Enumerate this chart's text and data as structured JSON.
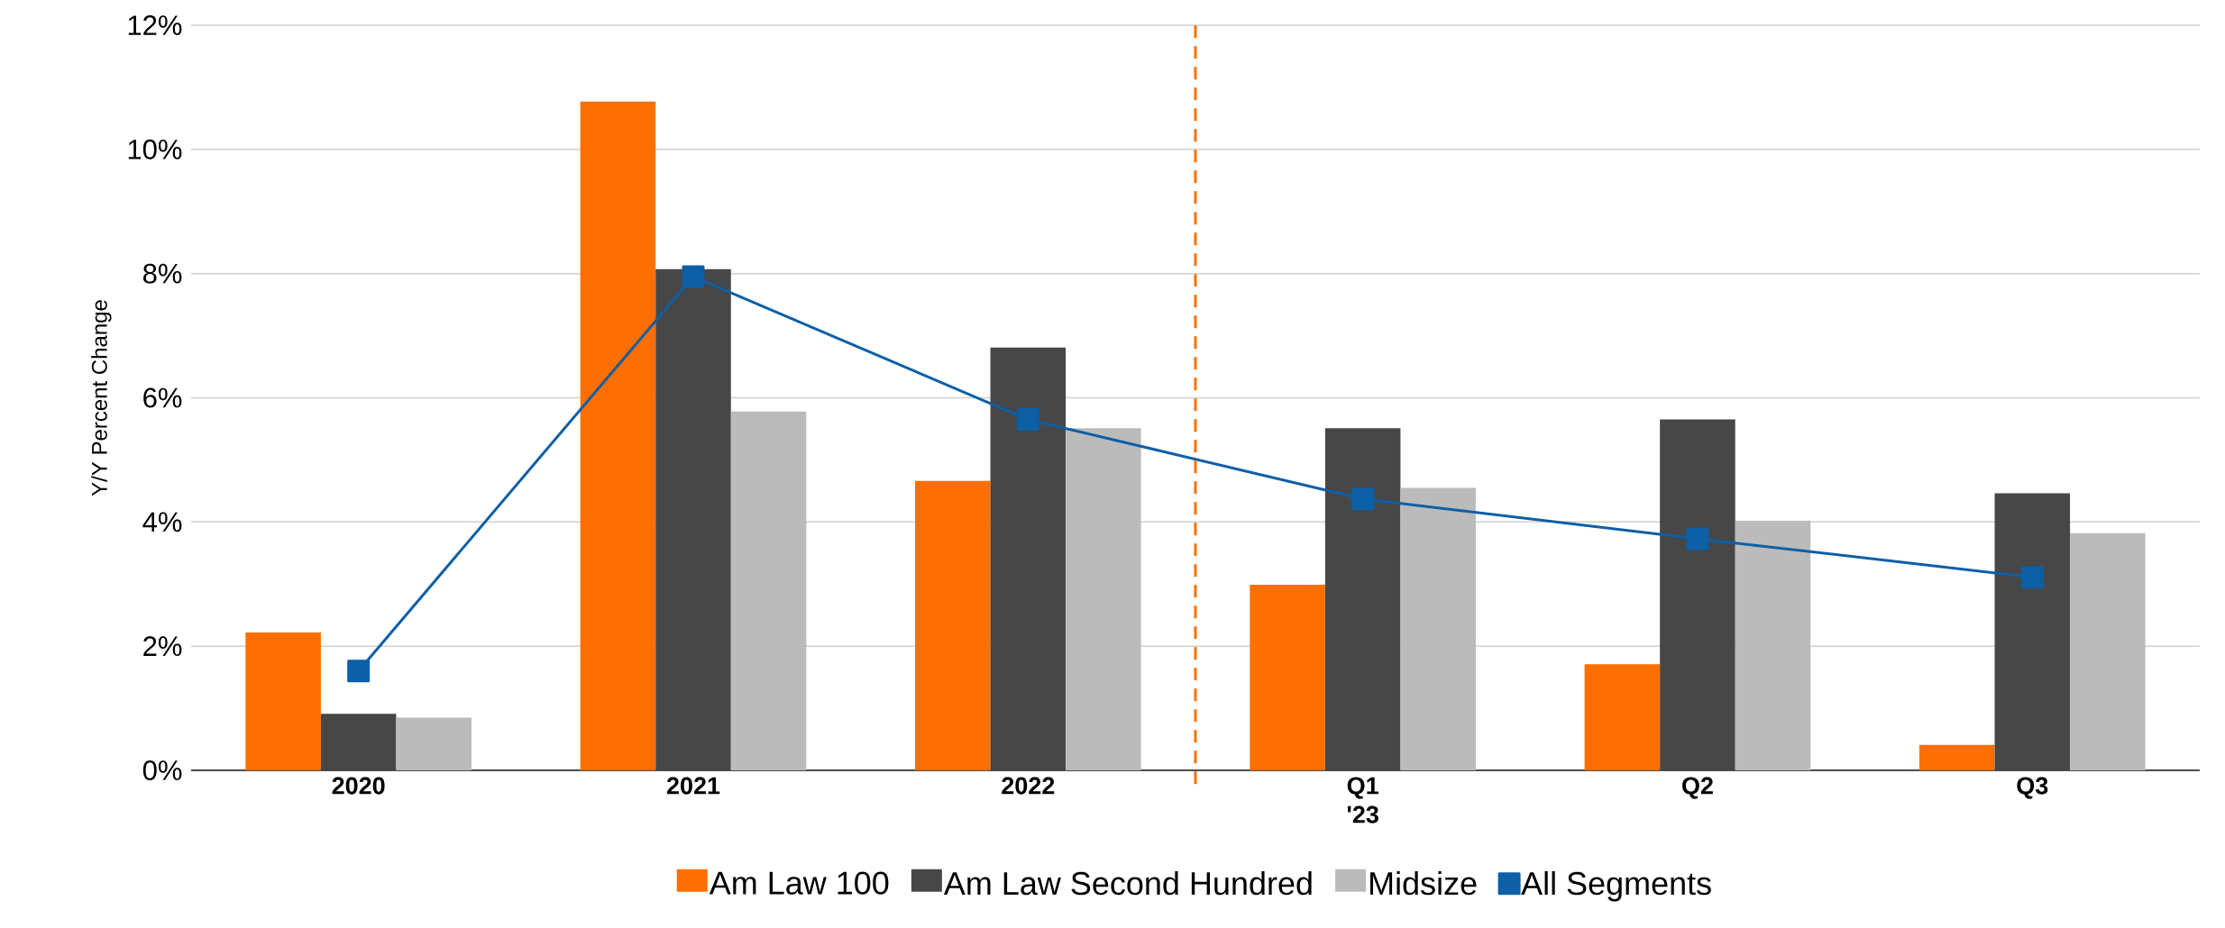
{
  "chart_data": {
    "type": "bar",
    "ylabel": "Y/Y Percent Change",
    "categories": [
      "2020",
      "2021",
      "2022",
      "Q1 '23",
      "Q2",
      "Q3"
    ],
    "series": [
      {
        "name": "Am Law 100",
        "color": "#ff6f00",
        "values": [
          2.22,
          10.77,
          4.66,
          2.99,
          1.71,
          0.41
        ]
      },
      {
        "name": "Am Law Second Hundred",
        "color": "#474747",
        "values": [
          0.91,
          8.07,
          6.81,
          5.51,
          5.65,
          4.46
        ]
      },
      {
        "name": "Midsize",
        "color": "#bbbbbb",
        "values": [
          0.85,
          5.78,
          5.51,
          4.55,
          4.02,
          3.82
        ]
      },
      {
        "name": "All Segments",
        "type": "line",
        "color": "#0d5fa6",
        "marker": "square",
        "values": [
          1.6,
          7.95,
          5.65,
          4.37,
          3.73,
          3.11
        ]
      }
    ],
    "ylim": [
      0,
      12
    ],
    "yticks": [
      {
        "value": 0,
        "label": "0%"
      },
      {
        "value": 2,
        "label": "2%"
      },
      {
        "value": 4,
        "label": "4%"
      },
      {
        "value": 6,
        "label": "6%"
      },
      {
        "value": 8,
        "label": "8%"
      },
      {
        "value": 10,
        "label": "10%"
      },
      {
        "value": 12,
        "label": "12%"
      }
    ],
    "grid": "y",
    "legend": "bottom"
  }
}
